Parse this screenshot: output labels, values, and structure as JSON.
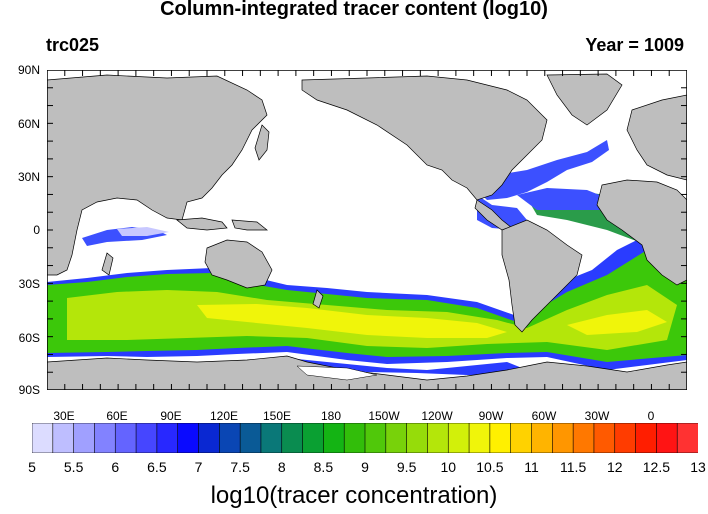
{
  "title": "Column-integrated tracer content (log10)",
  "left_label": "trc025",
  "right_label": "Year = 1009",
  "map": {
    "lat_labels": [
      "90N",
      "60N",
      "30N",
      "0",
      "30S",
      "60S",
      "90S"
    ],
    "lon_labels": [
      "30E",
      "60E",
      "90E",
      "120E",
      "150E",
      "180",
      "150W",
      "120W",
      "90W",
      "60W",
      "30W",
      "0"
    ],
    "land_color": "#bebebe",
    "ocean_no_data_color": "#ffffff"
  },
  "colorbar": {
    "title": "log10(tracer concentration)",
    "tick_labels": [
      "5",
      "5.5",
      "6",
      "6.5",
      "7",
      "7.5",
      "8",
      "8.5",
      "9",
      "9.5",
      "10",
      "10.5",
      "11",
      "11.5",
      "12",
      "12.5",
      "13"
    ],
    "colors": [
      "#dcdcff",
      "#bebeff",
      "#a0a0ff",
      "#8282ff",
      "#6464ff",
      "#4646ff",
      "#2828ff",
      "#0a0aff",
      "#0a28d2",
      "#0a46b4",
      "#0a5a96",
      "#0a7878",
      "#0a8c50",
      "#0aa032",
      "#14b414",
      "#32be0a",
      "#50c80a",
      "#78d20a",
      "#96dc0a",
      "#b4e60a",
      "#d2f00a",
      "#f0f50a",
      "#fff000",
      "#ffd200",
      "#ffb400",
      "#ff9600",
      "#ff7800",
      "#ff5a00",
      "#ff3c00",
      "#ff1e00",
      "#ff1414",
      "#ff3232"
    ]
  }
}
